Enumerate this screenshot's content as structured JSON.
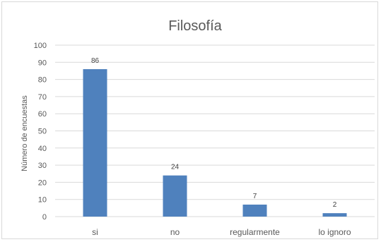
{
  "chart_data": {
    "type": "bar",
    "title": "Filosofía",
    "xlabel": "",
    "ylabel": "Número de encuestas",
    "categories": [
      "si",
      "no",
      "regularmente",
      "lo ignoro"
    ],
    "values": [
      86,
      24,
      7,
      2
    ],
    "data_labels": [
      "86",
      "24",
      "7",
      "2"
    ],
    "ylim": [
      0,
      100
    ],
    "yticks": [
      0,
      10,
      20,
      30,
      40,
      50,
      60,
      70,
      80,
      90,
      100
    ],
    "ytick_labels": [
      "0",
      "10",
      "20",
      "30",
      "40",
      "50",
      "60",
      "70",
      "80",
      "90",
      "100"
    ],
    "grid": true,
    "legend": "none",
    "bar_color": "#4f81bd",
    "grid_color": "#d9d9d9"
  }
}
